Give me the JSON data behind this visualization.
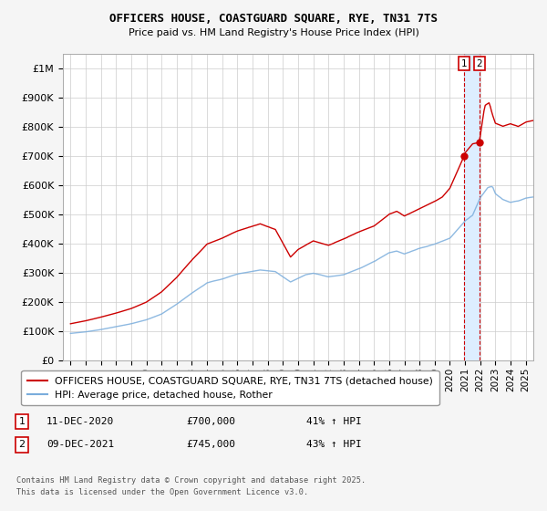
{
  "title": "OFFICERS HOUSE, COASTGUARD SQUARE, RYE, TN31 7TS",
  "subtitle": "Price paid vs. HM Land Registry's House Price Index (HPI)",
  "red_label": "OFFICERS HOUSE, COASTGUARD SQUARE, RYE, TN31 7TS (detached house)",
  "blue_label": "HPI: Average price, detached house, Rother",
  "transactions": [
    {
      "num": "1",
      "date": "11-DEC-2020",
      "price": "£700,000",
      "pct": "41% ↑ HPI"
    },
    {
      "num": "2",
      "date": "09-DEC-2021",
      "price": "£745,000",
      "pct": "43% ↑ HPI"
    }
  ],
  "sale_dates": [
    2020.94,
    2021.94
  ],
  "sale_prices": [
    700000,
    745000
  ],
  "footnote_line1": "Contains HM Land Registry data © Crown copyright and database right 2025.",
  "footnote_line2": "This data is licensed under the Open Government Licence v3.0.",
  "ylim": [
    0,
    1050000
  ],
  "xlim_start": 1994.5,
  "xlim_end": 2025.5,
  "background_color": "#f5f5f5",
  "plot_bg_color": "#ffffff",
  "grid_color": "#cccccc",
  "red_color": "#cc0000",
  "blue_color": "#7aaddc",
  "highlight_color": "#ddeeff",
  "vline_color": "#cc0000",
  "tick_years": [
    1995,
    1996,
    1997,
    1998,
    1999,
    2000,
    2001,
    2002,
    2003,
    2004,
    2005,
    2006,
    2007,
    2008,
    2009,
    2010,
    2011,
    2012,
    2013,
    2014,
    2015,
    2016,
    2017,
    2018,
    2019,
    2020,
    2021,
    2022,
    2023,
    2024,
    2025
  ],
  "ytick_labels": [
    "£0",
    "£100K",
    "£200K",
    "£300K",
    "£400K",
    "£500K",
    "£600K",
    "£700K",
    "£800K",
    "£900K",
    "£1M"
  ],
  "ytick_values": [
    0,
    100000,
    200000,
    300000,
    400000,
    500000,
    600000,
    700000,
    800000,
    900000,
    1000000
  ]
}
